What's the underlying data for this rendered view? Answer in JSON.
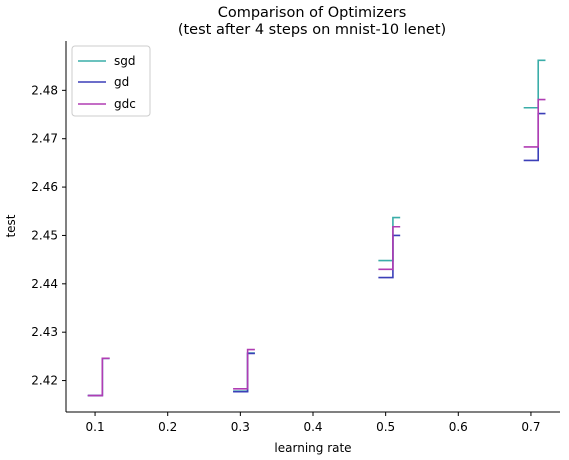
{
  "chart_data": {
    "type": "line",
    "title": [
      "Comparison of Optimizers",
      "(test after 4 steps on mnist-10 lenet)"
    ],
    "xlabel": "learning rate",
    "ylabel": "test",
    "xlim": [
      0.06,
      0.74
    ],
    "ylim": [
      2.4135,
      2.4902
    ],
    "xticks": [
      0.1,
      0.2,
      0.3,
      0.4,
      0.5,
      0.6,
      0.7
    ],
    "xtick_labels": [
      "0.1",
      "0.2",
      "0.3",
      "0.4",
      "0.5",
      "0.6",
      "0.7"
    ],
    "yticks": [
      2.42,
      2.43,
      2.44,
      2.45,
      2.46,
      2.47,
      2.48
    ],
    "ytick_labels": [
      "2.42",
      "2.43",
      "2.44",
      "2.45",
      "2.46",
      "2.47",
      "2.48"
    ],
    "grid": false,
    "legend_position": "top-left",
    "series": [
      {
        "name": "sgd",
        "color": "#3aada8",
        "groups": [
          {
            "x": [
              0.09,
              0.1,
              0.11
            ],
            "y": [
              2.4169,
              2.4169,
              2.4246
            ]
          },
          {
            "x": [
              0.29,
              0.3,
              0.31
            ],
            "y": [
              2.4178,
              2.4178,
              2.4257
            ]
          },
          {
            "x": [
              0.49,
              0.5,
              0.51
            ],
            "y": [
              2.4448,
              2.4448,
              2.4537
            ]
          },
          {
            "x": [
              0.69,
              0.7,
              0.71
            ],
            "y": [
              2.4764,
              2.4764,
              2.4862
            ]
          }
        ]
      },
      {
        "name": "gd",
        "color": "#3b3fb8",
        "groups": [
          {
            "x": [
              0.09,
              0.1,
              0.11
            ],
            "y": [
              2.4169,
              2.4169,
              2.4246
            ]
          },
          {
            "x": [
              0.29,
              0.3,
              0.31
            ],
            "y": [
              2.4177,
              2.4177,
              2.4256
            ]
          },
          {
            "x": [
              0.49,
              0.5,
              0.51
            ],
            "y": [
              2.4413,
              2.4413,
              2.45
            ]
          },
          {
            "x": [
              0.69,
              0.7,
              0.71
            ],
            "y": [
              2.4655,
              2.4655,
              2.4752
            ]
          }
        ]
      },
      {
        "name": "gdc",
        "color": "#b03db3",
        "groups": [
          {
            "x": [
              0.09,
              0.1,
              0.11
            ],
            "y": [
              2.4169,
              2.4169,
              2.4246
            ]
          },
          {
            "x": [
              0.29,
              0.3,
              0.31
            ],
            "y": [
              2.4183,
              2.4183,
              2.4264
            ]
          },
          {
            "x": [
              0.49,
              0.5,
              0.51
            ],
            "y": [
              2.443,
              2.443,
              2.4518
            ]
          },
          {
            "x": [
              0.69,
              0.7,
              0.71
            ],
            "y": [
              2.4683,
              2.4683,
              2.4781
            ]
          }
        ]
      }
    ]
  }
}
